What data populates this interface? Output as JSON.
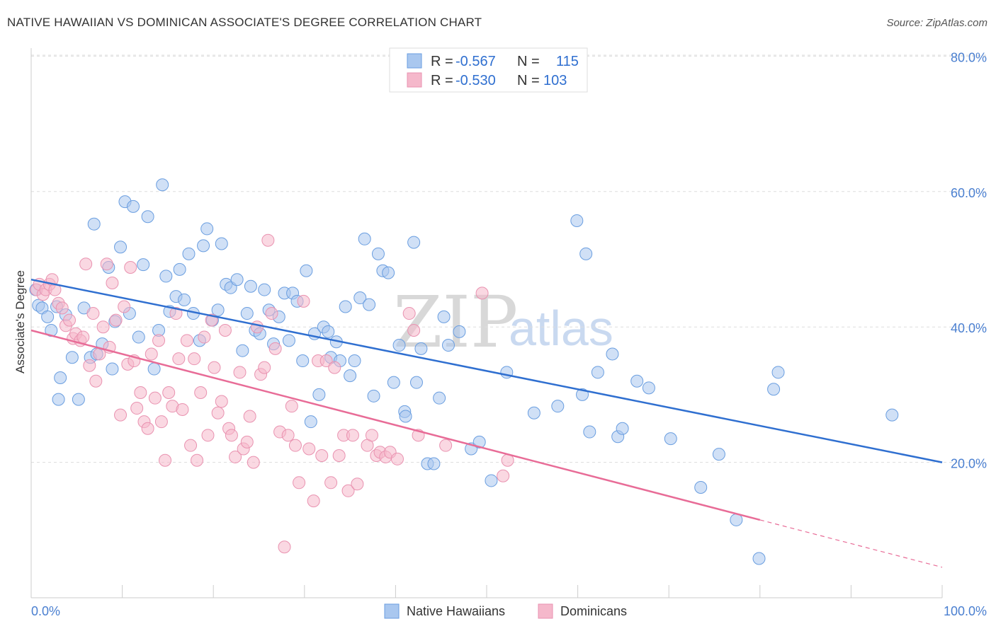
{
  "title": "NATIVE HAWAIIAN VS DOMINICAN ASSOCIATE'S DEGREE CORRELATION CHART",
  "source": "Source: ZipAtlas.com",
  "watermark": {
    "zip": "ZIP",
    "atlas": "atlas"
  },
  "legend": {
    "rows": [
      {
        "r_label": "R = ",
        "r_value": "-0.567",
        "n_label": "N = ",
        "n_value": "115",
        "color": "#a9c7ef"
      },
      {
        "r_label": "R = ",
        "r_value": "-0.530",
        "n_label": "N = ",
        "n_value": "103",
        "color": "#f5b8cb"
      }
    ]
  },
  "bottom_legend": [
    {
      "label": "Native Hawaiians",
      "color": "#a9c7ef"
    },
    {
      "label": "Dominicans",
      "color": "#f5b8cb"
    }
  ],
  "chart_data": {
    "type": "scatter",
    "title": "NATIVE HAWAIIAN VS DOMINICAN ASSOCIATE'S DEGREE CORRELATION CHART",
    "xlabel": "",
    "ylabel": "Associate's Degree",
    "xlim": [
      0,
      100
    ],
    "ylim": [
      0,
      85
    ],
    "x_tick_labels": [
      "0.0%",
      "100.0%"
    ],
    "y_ticks": [
      20,
      40,
      60,
      80
    ],
    "y_tick_labels": [
      "20.0%",
      "40.0%",
      "60.0%",
      "80.0%"
    ],
    "grid": true,
    "legend_position": "top-center",
    "series": [
      {
        "name": "Native Hawaiians",
        "color": "#6a9ee0",
        "fill": "#a9c7ef",
        "trend": {
          "x0": 0,
          "y0": 47.0,
          "x1": 100,
          "y1": 20.0,
          "color": "#2f6fd0"
        },
        "points": [
          [
            0.5,
            45.5
          ],
          [
            0.8,
            43.2
          ],
          [
            1.2,
            42.8
          ],
          [
            1.8,
            41.5
          ],
          [
            2.2,
            39.5
          ],
          [
            2.8,
            43.0
          ],
          [
            3.2,
            32.5
          ],
          [
            3.8,
            41.8
          ],
          [
            4.5,
            35.5
          ],
          [
            5.2,
            29.3
          ],
          [
            5.8,
            42.8
          ],
          [
            6.5,
            35.5
          ],
          [
            6.9,
            55.2
          ],
          [
            7.2,
            36.0
          ],
          [
            7.8,
            37.5
          ],
          [
            8.5,
            48.8
          ],
          [
            8.9,
            33.8
          ],
          [
            9.2,
            40.8
          ],
          [
            9.8,
            51.8
          ],
          [
            10.3,
            58.5
          ],
          [
            10.8,
            42.0
          ],
          [
            11.2,
            57.8
          ],
          [
            11.8,
            38.5
          ],
          [
            12.3,
            49.2
          ],
          [
            12.8,
            56.3
          ],
          [
            13.5,
            33.8
          ],
          [
            14.0,
            39.5
          ],
          [
            14.4,
            61.0
          ],
          [
            14.8,
            47.5
          ],
          [
            15.2,
            42.3
          ],
          [
            15.9,
            44.5
          ],
          [
            16.3,
            48.5
          ],
          [
            16.8,
            44.0
          ],
          [
            17.3,
            50.8
          ],
          [
            17.8,
            42.0
          ],
          [
            18.5,
            38.0
          ],
          [
            18.9,
            52.0
          ],
          [
            19.3,
            54.5
          ],
          [
            19.9,
            41.0
          ],
          [
            20.5,
            42.5
          ],
          [
            20.9,
            52.3
          ],
          [
            21.4,
            46.3
          ],
          [
            21.9,
            45.8
          ],
          [
            22.6,
            47.0
          ],
          [
            23.2,
            36.5
          ],
          [
            23.7,
            42.0
          ],
          [
            24.1,
            46.0
          ],
          [
            24.6,
            39.5
          ],
          [
            25.1,
            39.0
          ],
          [
            25.6,
            45.5
          ],
          [
            26.1,
            42.5
          ],
          [
            26.6,
            37.5
          ],
          [
            27.2,
            41.5
          ],
          [
            27.8,
            45.0
          ],
          [
            28.3,
            38.0
          ],
          [
            28.7,
            45.0
          ],
          [
            29.2,
            43.8
          ],
          [
            29.8,
            35.0
          ],
          [
            30.2,
            48.3
          ],
          [
            30.7,
            26.0
          ],
          [
            31.1,
            39.0
          ],
          [
            31.6,
            30.0
          ],
          [
            32.1,
            40.0
          ],
          [
            32.6,
            39.3
          ],
          [
            32.9,
            35.5
          ],
          [
            33.5,
            37.8
          ],
          [
            33.9,
            35.0
          ],
          [
            34.5,
            43.0
          ],
          [
            35.0,
            32.8
          ],
          [
            35.5,
            35.0
          ],
          [
            36.1,
            44.3
          ],
          [
            36.6,
            53.0
          ],
          [
            37.1,
            43.3
          ],
          [
            37.6,
            29.8
          ],
          [
            38.1,
            50.8
          ],
          [
            38.6,
            48.3
          ],
          [
            39.2,
            48.0
          ],
          [
            39.8,
            31.8
          ],
          [
            40.4,
            37.3
          ],
          [
            41.0,
            27.5
          ],
          [
            41.1,
            26.8
          ],
          [
            42.0,
            52.5
          ],
          [
            42.3,
            31.8
          ],
          [
            42.8,
            36.8
          ],
          [
            43.5,
            19.8
          ],
          [
            44.2,
            19.8
          ],
          [
            44.8,
            29.5
          ],
          [
            45.3,
            41.5
          ],
          [
            45.8,
            37.3
          ],
          [
            47.0,
            39.3
          ],
          [
            48.3,
            22.0
          ],
          [
            49.2,
            23.0
          ],
          [
            50.5,
            17.3
          ],
          [
            52.2,
            33.3
          ],
          [
            55.2,
            27.3
          ],
          [
            57.8,
            28.3
          ],
          [
            59.9,
            55.7
          ],
          [
            60.5,
            30.0
          ],
          [
            60.9,
            50.8
          ],
          [
            61.3,
            24.5
          ],
          [
            62.2,
            33.3
          ],
          [
            63.8,
            36.0
          ],
          [
            64.4,
            23.8
          ],
          [
            64.9,
            25.0
          ],
          [
            66.5,
            32.0
          ],
          [
            67.8,
            31.0
          ],
          [
            70.2,
            23.5
          ],
          [
            73.5,
            16.3
          ],
          [
            75.5,
            21.2
          ],
          [
            77.4,
            11.5
          ],
          [
            79.9,
            5.8
          ],
          [
            81.5,
            30.8
          ],
          [
            82.0,
            33.3
          ],
          [
            94.5,
            27.0
          ],
          [
            3.0,
            29.3
          ]
        ]
      },
      {
        "name": "Dominicans",
        "color": "#e992b0",
        "fill": "#f5b8cb",
        "trend": {
          "x0": 0,
          "y0": 39.5,
          "x1": 80,
          "y1": 11.5,
          "dash_x1": 100,
          "dash_y1": 4.5,
          "color": "#e86c97"
        },
        "points": [
          [
            0.6,
            45.5
          ],
          [
            0.9,
            46.3
          ],
          [
            1.3,
            44.8
          ],
          [
            1.6,
            45.5
          ],
          [
            2.0,
            46.3
          ],
          [
            2.3,
            47.0
          ],
          [
            2.6,
            45.5
          ],
          [
            3.0,
            43.5
          ],
          [
            3.4,
            42.8
          ],
          [
            3.8,
            40.2
          ],
          [
            4.2,
            41.0
          ],
          [
            4.6,
            38.3
          ],
          [
            4.9,
            39.0
          ],
          [
            5.4,
            38.0
          ],
          [
            5.7,
            38.5
          ],
          [
            6.0,
            49.3
          ],
          [
            6.4,
            34.3
          ],
          [
            6.8,
            42.0
          ],
          [
            7.1,
            32.0
          ],
          [
            7.5,
            36.0
          ],
          [
            7.9,
            40.0
          ],
          [
            8.3,
            49.3
          ],
          [
            8.6,
            37.0
          ],
          [
            8.9,
            46.5
          ],
          [
            9.3,
            41.0
          ],
          [
            9.8,
            27.0
          ],
          [
            10.2,
            43.0
          ],
          [
            10.6,
            34.5
          ],
          [
            10.9,
            48.8
          ],
          [
            11.3,
            35.0
          ],
          [
            11.6,
            28.0
          ],
          [
            12.0,
            30.3
          ],
          [
            12.4,
            26.0
          ],
          [
            12.8,
            25.0
          ],
          [
            13.2,
            36.0
          ],
          [
            13.6,
            29.5
          ],
          [
            14.0,
            38.0
          ],
          [
            14.3,
            26.0
          ],
          [
            14.7,
            20.3
          ],
          [
            15.1,
            30.3
          ],
          [
            15.5,
            28.3
          ],
          [
            15.9,
            42.0
          ],
          [
            16.2,
            35.3
          ],
          [
            16.6,
            27.8
          ],
          [
            17.1,
            38.0
          ],
          [
            17.5,
            22.5
          ],
          [
            17.9,
            35.3
          ],
          [
            18.2,
            20.3
          ],
          [
            18.6,
            30.3
          ],
          [
            19.0,
            38.5
          ],
          [
            19.4,
            24.0
          ],
          [
            19.8,
            41.0
          ],
          [
            20.1,
            34.0
          ],
          [
            20.5,
            27.3
          ],
          [
            20.9,
            29.0
          ],
          [
            21.3,
            39.5
          ],
          [
            21.7,
            25.0
          ],
          [
            22.0,
            24.0
          ],
          [
            22.4,
            20.8
          ],
          [
            22.9,
            33.3
          ],
          [
            23.3,
            22.0
          ],
          [
            23.7,
            23.0
          ],
          [
            24.0,
            26.8
          ],
          [
            24.4,
            20.0
          ],
          [
            24.8,
            40.0
          ],
          [
            25.2,
            33.0
          ],
          [
            25.6,
            34.0
          ],
          [
            26.0,
            52.8
          ],
          [
            26.4,
            42.0
          ],
          [
            26.8,
            36.8
          ],
          [
            27.3,
            24.5
          ],
          [
            27.8,
            7.5
          ],
          [
            28.2,
            24.0
          ],
          [
            28.6,
            28.3
          ],
          [
            29.0,
            22.5
          ],
          [
            29.4,
            17.0
          ],
          [
            29.9,
            43.8
          ],
          [
            30.5,
            22.0
          ],
          [
            31.0,
            14.3
          ],
          [
            31.5,
            35.0
          ],
          [
            31.9,
            21.0
          ],
          [
            32.4,
            35.0
          ],
          [
            32.9,
            17.0
          ],
          [
            33.3,
            34.0
          ],
          [
            33.8,
            21.0
          ],
          [
            34.3,
            24.0
          ],
          [
            34.8,
            15.8
          ],
          [
            35.3,
            24.0
          ],
          [
            35.8,
            16.8
          ],
          [
            36.9,
            22.5
          ],
          [
            37.4,
            24.0
          ],
          [
            37.9,
            21.0
          ],
          [
            38.3,
            21.5
          ],
          [
            38.9,
            20.8
          ],
          [
            39.4,
            21.5
          ],
          [
            40.2,
            20.5
          ],
          [
            41.5,
            42.0
          ],
          [
            42.0,
            39.5
          ],
          [
            42.5,
            24.0
          ],
          [
            45.5,
            22.5
          ],
          [
            49.5,
            45.0
          ],
          [
            51.8,
            18.0
          ],
          [
            52.3,
            20.3
          ]
        ]
      }
    ]
  }
}
